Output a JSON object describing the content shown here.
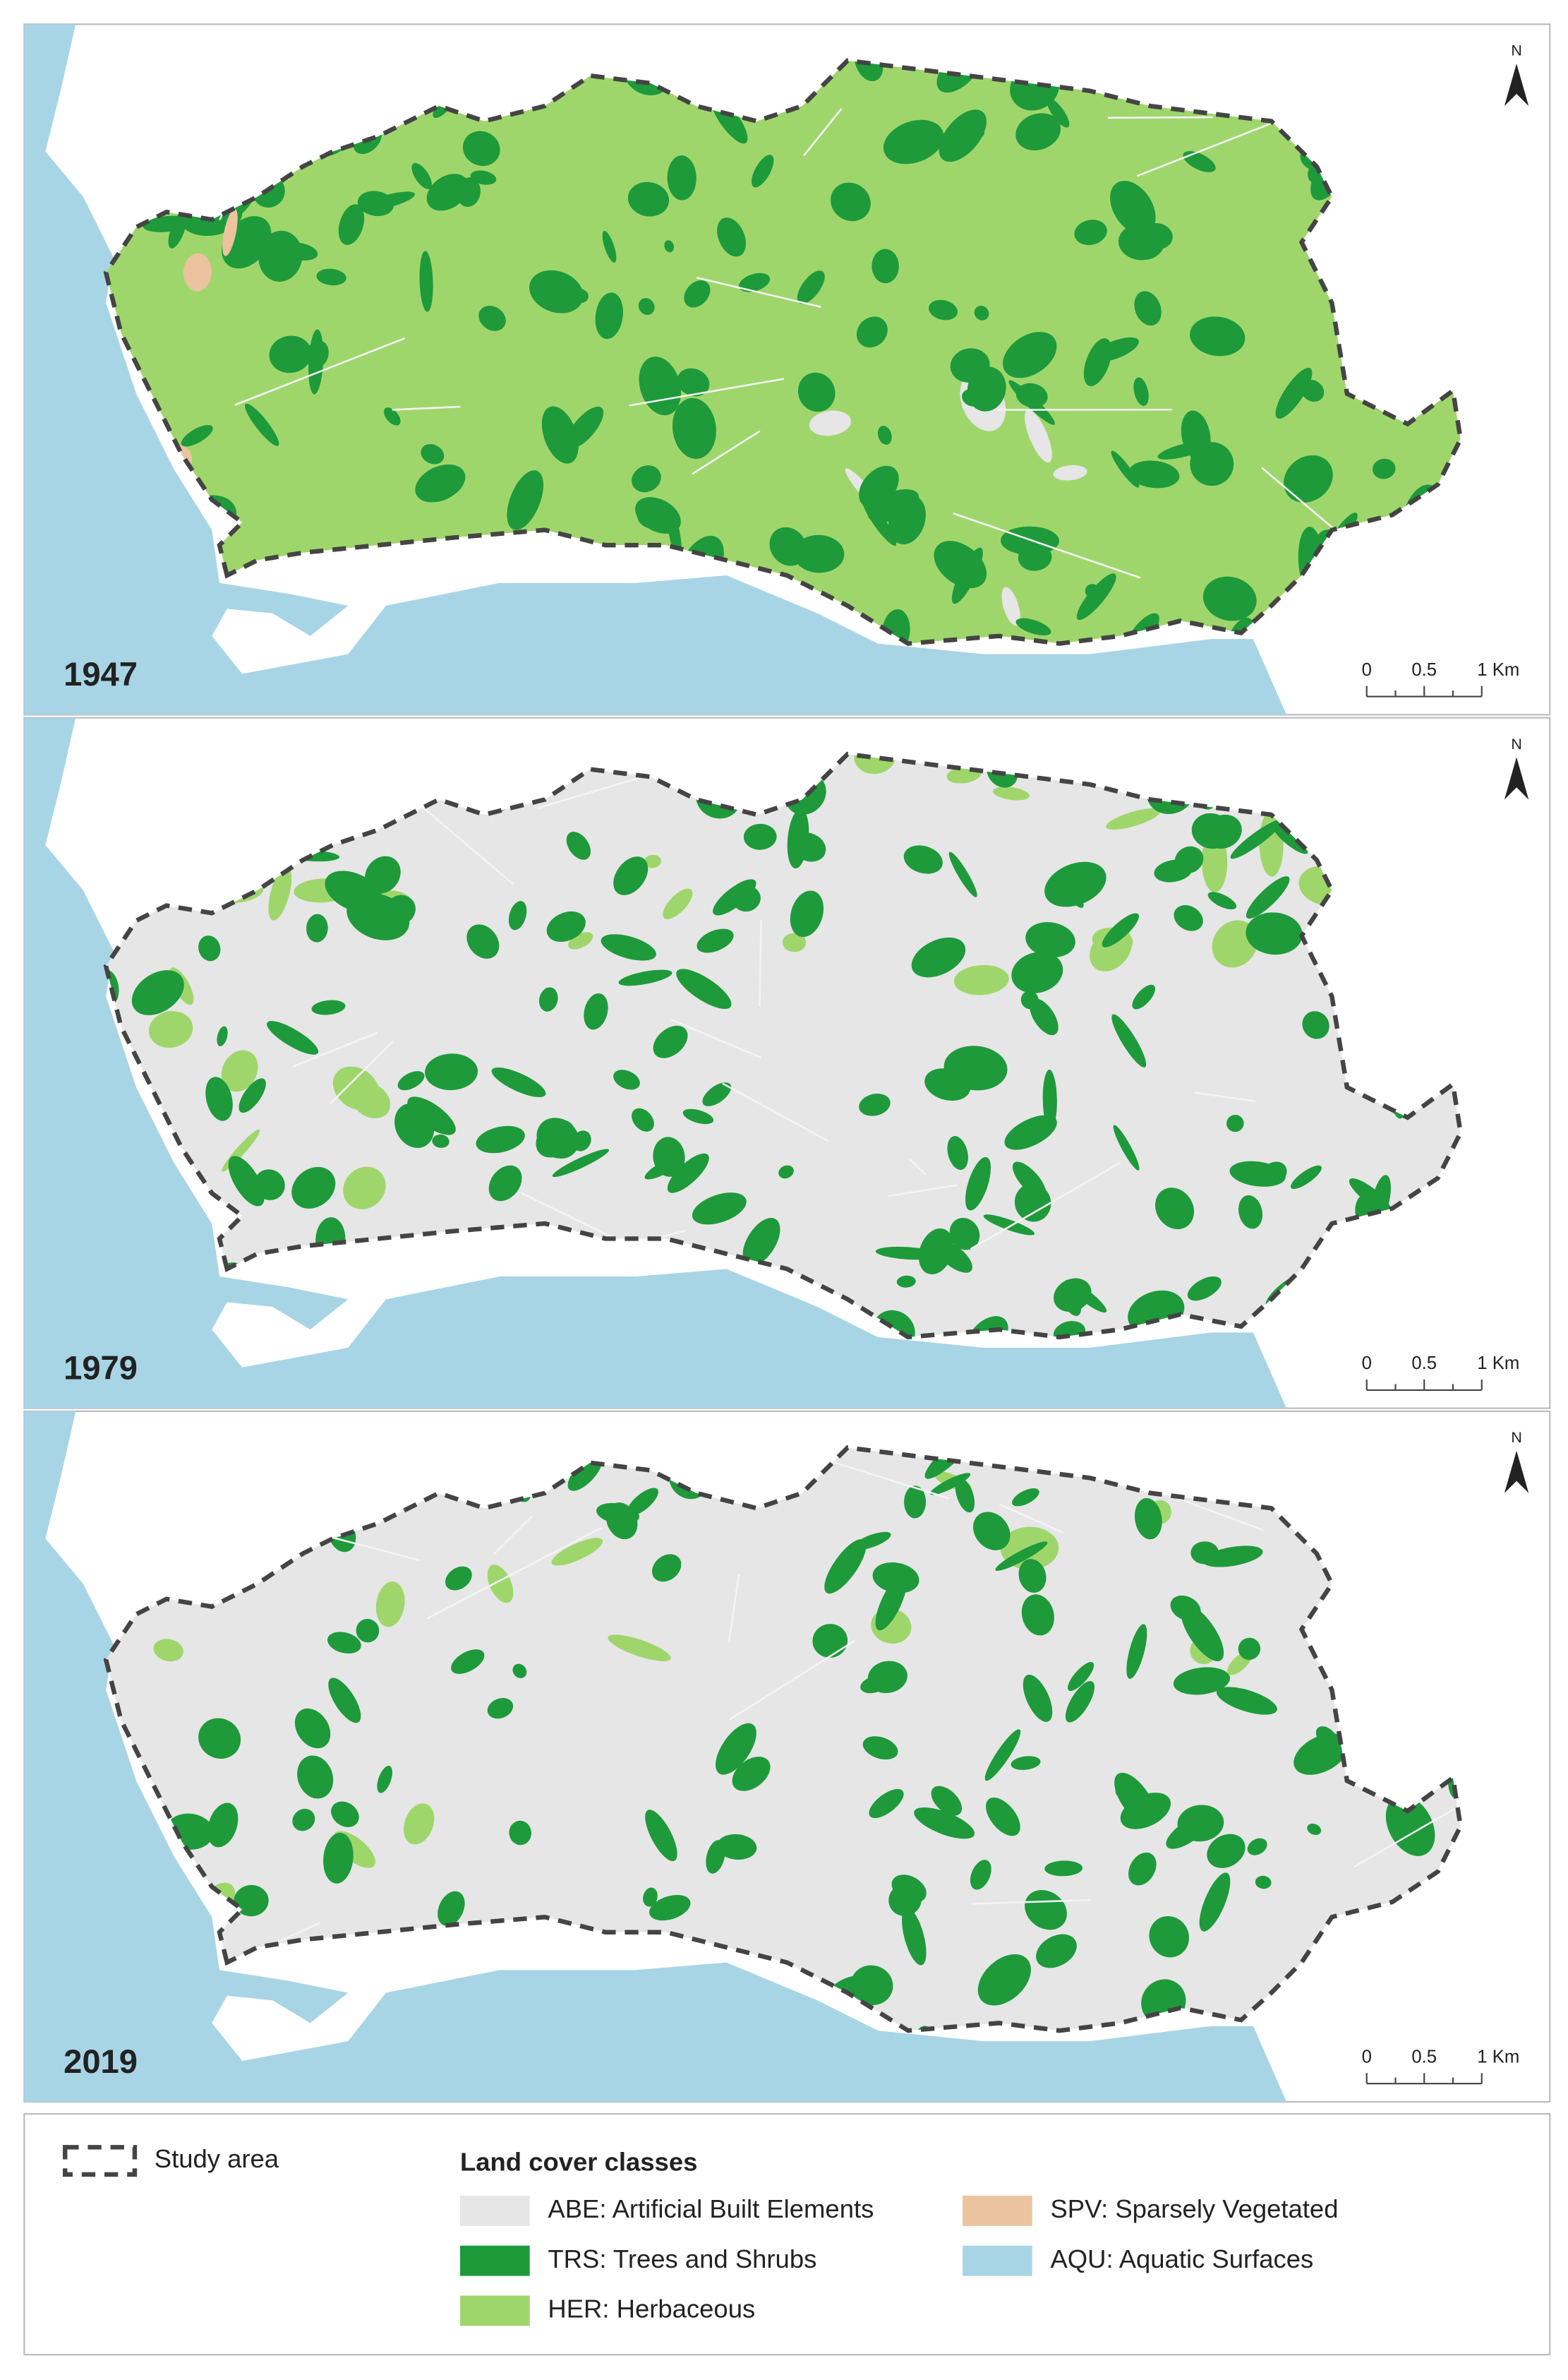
{
  "panels": [
    {
      "year": "1947",
      "north": "N",
      "scale": [
        "0",
        "0.5",
        "1 Km"
      ]
    },
    {
      "year": "1979",
      "north": "N",
      "scale": [
        "0",
        "0.5",
        "1 Km"
      ]
    },
    {
      "year": "2019",
      "north": "N",
      "scale": [
        "0",
        "0.5",
        "1 Km"
      ]
    }
  ],
  "legend": {
    "study_area": "Study area",
    "title": "Land cover classes",
    "items": [
      {
        "label": "ABE: Artificial Built Elements",
        "color": "#e6e6e6"
      },
      {
        "label": "TRS: Trees and Shrubs",
        "color": "#1e9a3b"
      },
      {
        "label": "HER: Herbaceous",
        "color": "#9fd66c"
      },
      {
        "label": "SPV: Sparsely Vegetated",
        "color": "#ebc39f"
      },
      {
        "label": "AQU: Aquatic Surfaces",
        "color": "#a8d5e6"
      }
    ]
  }
}
